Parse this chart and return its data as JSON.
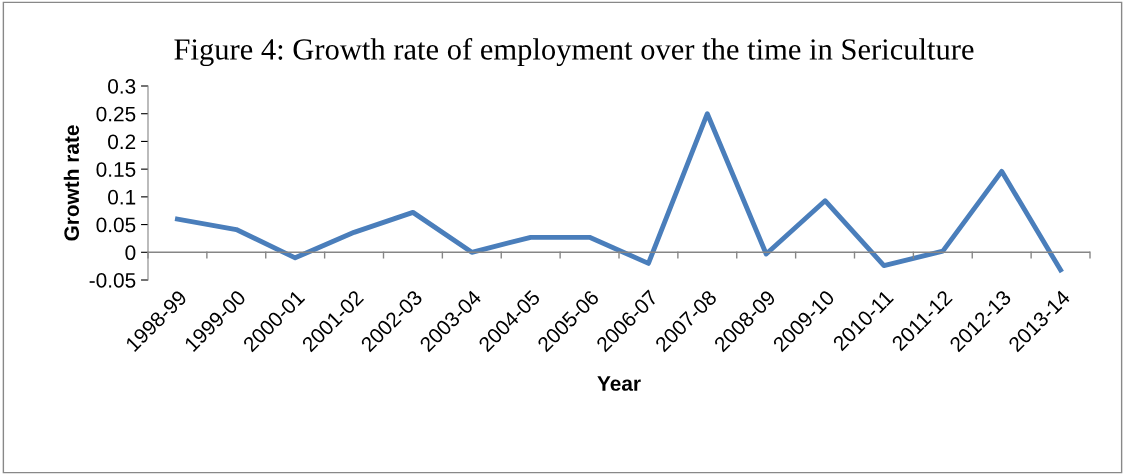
{
  "chart_data": {
    "type": "line",
    "title": "Figure 4: Growth rate of employment over the time in Sericulture",
    "xlabel": "Year",
    "ylabel": "Growth rate",
    "categories": [
      "1998-99",
      "1999-00",
      "2000-01",
      "2001-02",
      "2002-03",
      "2003-04",
      "2004-05",
      "2005-06",
      "2006-07",
      "2007-08",
      "2008-09",
      "2009-10",
      "2010-11",
      "2011-12",
      "2012-13",
      "2013-14"
    ],
    "series": [
      {
        "color": "#4a7ebb",
        "values": [
          0.06,
          0.041,
          -0.01,
          0.036,
          0.072,
          0.0,
          0.027,
          0.027,
          -0.02,
          0.25,
          -0.003,
          0.093,
          -0.024,
          0.002,
          0.146,
          -0.032
        ]
      }
    ],
    "ylim": [
      -0.05,
      0.3
    ],
    "yticks": [
      -0.05,
      0,
      0.05,
      0.1,
      0.15,
      0.2,
      0.25,
      0.3
    ],
    "grid": false,
    "legend": false,
    "marker": "none",
    "line_style": "solid"
  }
}
